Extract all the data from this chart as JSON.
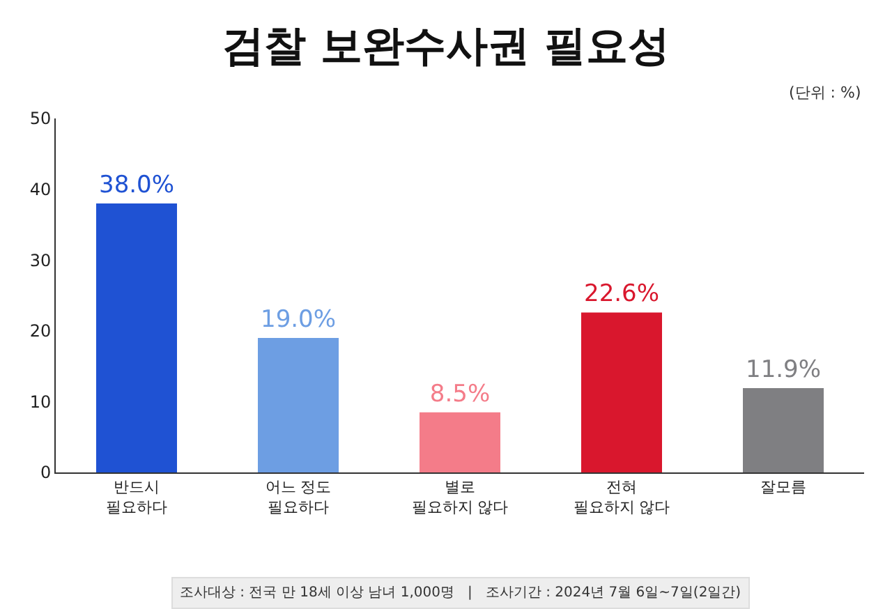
{
  "chart_data": {
    "type": "bar",
    "title": "검찰 보완수사권 필요성",
    "categories": [
      "반드시\n필요하다",
      "어느 정도\n필요하다",
      "별로\n필요하지 않다",
      "전혀\n필요하지 않다",
      "잘모름"
    ],
    "values": [
      38.0,
      19.0,
      8.5,
      22.6,
      11.9
    ],
    "colors": [
      "#1f52d3",
      "#6d9ee3",
      "#f47c89",
      "#d9172d",
      "#7f7f82"
    ],
    "value_labels": [
      "38.0%",
      "19.0%",
      "8.5%",
      "22.6%",
      "11.9%"
    ],
    "ylim": [
      0,
      50
    ],
    "yticks": [
      0,
      10,
      20,
      30,
      40,
      50
    ],
    "annotations": [
      "(단위 : %)",
      "조사대상 : 전국 만 18세 이상 남녀 1,000명   |   조사기간 : 2024년 7월 6일~7일(2일간)"
    ]
  }
}
